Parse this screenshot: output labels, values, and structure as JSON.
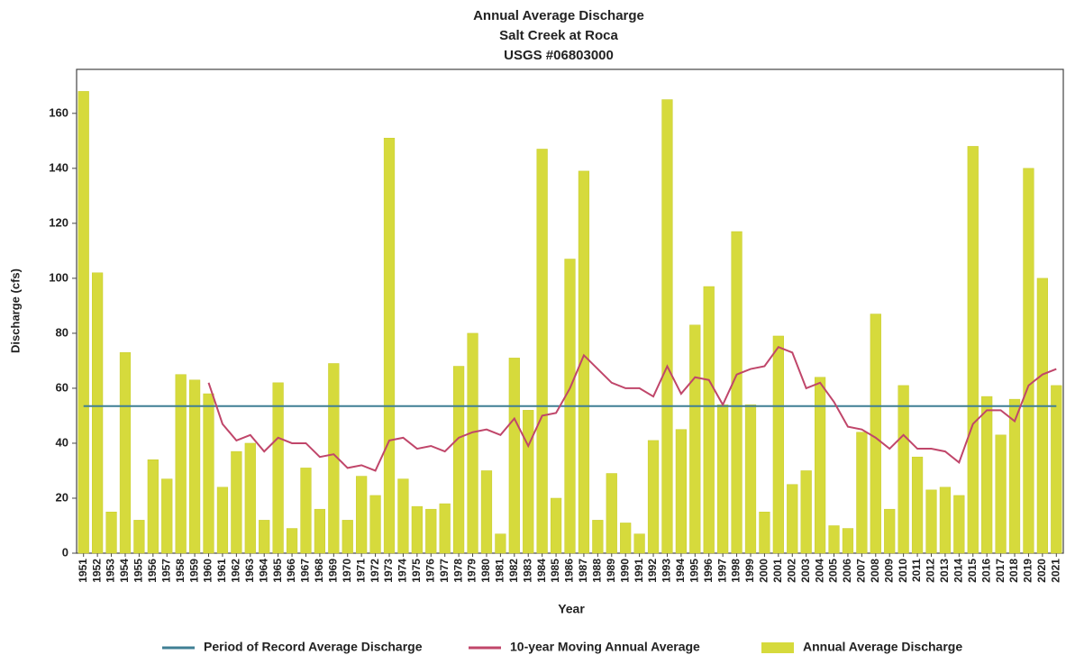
{
  "chart_data": {
    "type": "bar",
    "title": [
      "Annual Average Discharge",
      "Salt Creek at Roca",
      "USGS #06803000"
    ],
    "x_label": "Year",
    "y_label": "Discharge (cfs)",
    "categories": [
      "1951",
      "1952",
      "1953",
      "1954",
      "1955",
      "1956",
      "1957",
      "1958",
      "1959",
      "1960",
      "1961",
      "1962",
      "1963",
      "1964",
      "1965",
      "1966",
      "1967",
      "1968",
      "1969",
      "1970",
      "1971",
      "1972",
      "1973",
      "1974",
      "1975",
      "1976",
      "1977",
      "1978",
      "1979",
      "1980",
      "1981",
      "1982",
      "1983",
      "1984",
      "1985",
      "1986",
      "1987",
      "1988",
      "1989",
      "1990",
      "1991",
      "1992",
      "1993",
      "1994",
      "1995",
      "1996",
      "1997",
      "1998",
      "1999",
      "2000",
      "2001",
      "2002",
      "2003",
      "2004",
      "2005",
      "2006",
      "2007",
      "2008",
      "2009",
      "2010",
      "2011",
      "2012",
      "2013",
      "2014",
      "2015",
      "2016",
      "2017",
      "2018",
      "2019",
      "2020",
      "2021"
    ],
    "series": [
      {
        "name": "Period of Record Average Discharge",
        "type": "hline",
        "color": "#3f7f94",
        "value": 53.5
      },
      {
        "name": "10-year Moving Annual Average",
        "type": "line",
        "color": "#c0466a",
        "values": [
          null,
          null,
          null,
          null,
          null,
          null,
          null,
          null,
          null,
          62,
          47,
          41,
          43,
          37,
          42,
          40,
          40,
          35,
          36,
          31,
          32,
          30,
          41,
          42,
          38,
          39,
          37,
          42,
          44,
          45,
          43,
          49,
          39,
          50,
          51,
          60,
          72,
          67,
          62,
          60,
          60,
          57,
          68,
          58,
          64,
          63,
          54,
          65,
          67,
          68,
          75,
          73,
          60,
          62,
          55,
          46,
          45,
          42,
          38,
          43,
          38,
          38,
          37,
          33,
          47,
          52,
          52,
          48,
          61,
          65,
          67
        ]
      },
      {
        "name": "Annual Average Discharge",
        "type": "bar",
        "color": "#d6da3c",
        "values": [
          168,
          102,
          15,
          73,
          12,
          34,
          27,
          65,
          63,
          58,
          24,
          37,
          40,
          12,
          62,
          9,
          31,
          16,
          69,
          12,
          28,
          21,
          151,
          27,
          17,
          16,
          18,
          68,
          80,
          30,
          7,
          71,
          52,
          147,
          20,
          107,
          139,
          12,
          29,
          11,
          7,
          41,
          165,
          45,
          83,
          97,
          54,
          117,
          54,
          15,
          79,
          25,
          30,
          64,
          10,
          9,
          44,
          87,
          16,
          61,
          35,
          23,
          24,
          21,
          148,
          57,
          43,
          56,
          140,
          100,
          61
        ]
      }
    ],
    "ylim": [
      0,
      176
    ],
    "yticks": [
      0,
      20,
      40,
      60,
      80,
      100,
      120,
      140,
      160
    ],
    "grid": false
  }
}
